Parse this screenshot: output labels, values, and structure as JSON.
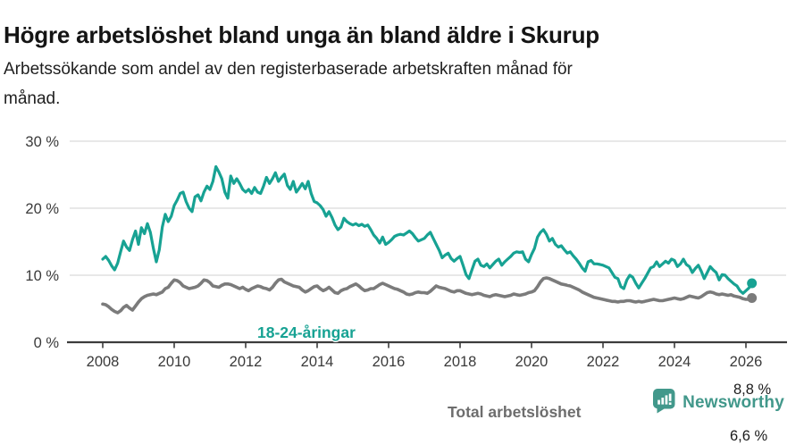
{
  "header": {
    "title": "Högre arbetslöshet bland unga än bland äldre i Skurup",
    "subtitle_line1": "Arbetssökande som andel av den registerbaserade arbetskraften månad för",
    "subtitle_line2": "månad."
  },
  "chart_data": {
    "type": "line",
    "unit": "percent",
    "frequency": "monthly",
    "x_start": "2008-01",
    "x_end": "2026-03",
    "x_tick_labels": [
      "2008",
      "2010",
      "2012",
      "2014",
      "2016",
      "2018",
      "2020",
      "2022",
      "2024",
      "2026"
    ],
    "y_ticks": [
      0,
      10,
      20,
      30
    ],
    "y_tick_labels": [
      "0 %",
      "10 %",
      "20 %",
      "30 %"
    ],
    "ylim": [
      0,
      32
    ],
    "grid": "horizontal",
    "legend_position": "inline-labels",
    "series": [
      {
        "name": "18-24-åringar",
        "color": "#17a293",
        "end_label": "8,8 %",
        "last_value": 8.8,
        "values": [
          12.4,
          12.8,
          12.2,
          11.4,
          10.8,
          11.8,
          13.5,
          15.1,
          14.2,
          13.7,
          15.3,
          16.6,
          14.6,
          17.1,
          16.2,
          17.7,
          16.4,
          14.0,
          12.0,
          13.8,
          17.2,
          19.1,
          18.0,
          18.8,
          20.4,
          21.2,
          22.2,
          22.4,
          21.0,
          20.0,
          19.5,
          21.7,
          22.0,
          21.1,
          22.4,
          23.3,
          22.8,
          24.0,
          26.2,
          25.4,
          24.4,
          22.4,
          21.5,
          24.8,
          23.7,
          24.4,
          23.7,
          22.8,
          22.4,
          22.8,
          22.2,
          23.1,
          22.4,
          22.2,
          23.3,
          24.6,
          23.7,
          24.4,
          25.3,
          24.0,
          24.6,
          25.1,
          23.4,
          22.8,
          24.0,
          22.4,
          23.0,
          23.7,
          22.9,
          24.0,
          22.2,
          21.0,
          20.8,
          20.4,
          19.8,
          18.8,
          19.5,
          18.6,
          17.5,
          16.8,
          17.2,
          18.5,
          18.0,
          17.7,
          17.5,
          17.7,
          17.4,
          17.6,
          17.3,
          17.5,
          16.8,
          16.0,
          15.5,
          14.8,
          15.7,
          14.6,
          14.9,
          15.3,
          15.8,
          16.0,
          16.1,
          16.0,
          16.3,
          16.6,
          16.2,
          15.6,
          15.1,
          15.3,
          15.5,
          16.0,
          16.4,
          15.5,
          14.6,
          13.7,
          12.6,
          13.0,
          13.3,
          12.5,
          12.1,
          12.5,
          12.8,
          11.5,
          10.1,
          9.5,
          10.8,
          12.1,
          12.4,
          11.5,
          11.3,
          11.7,
          11.1,
          11.6,
          12.1,
          12.4,
          11.5,
          12.0,
          12.4,
          12.8,
          13.3,
          13.5,
          13.4,
          13.5,
          12.4,
          12.0,
          13.1,
          14.0,
          15.7,
          16.4,
          16.8,
          16.1,
          15.1,
          15.5,
          14.6,
          14.2,
          14.4,
          13.8,
          13.3,
          13.5,
          12.9,
          12.4,
          11.8,
          11.1,
          10.6,
          12.0,
          12.2,
          11.7,
          11.7,
          11.6,
          11.5,
          11.3,
          11.1,
          10.4,
          9.7,
          9.5,
          8.3,
          8.0,
          9.3,
          10.0,
          9.7,
          8.8,
          8.1,
          8.8,
          9.5,
          10.3,
          11.1,
          11.3,
          12.0,
          11.3,
          11.7,
          12.1,
          11.8,
          12.4,
          12.2,
          11.3,
          11.7,
          12.4,
          11.6,
          11.3,
          10.4,
          11.0,
          11.5,
          10.6,
          9.5,
          10.4,
          11.3,
          10.8,
          10.4,
          9.3,
          10.1,
          10.0,
          9.5,
          9.1,
          8.7,
          8.4,
          7.7,
          7.3,
          7.7,
          8.1,
          8.8
        ]
      },
      {
        "name": "Total arbetslöshet",
        "color": "#7b7b7b",
        "label_color": "#6d6d6d",
        "end_label": "6,6 %",
        "last_value": 6.6,
        "values": [
          5.7,
          5.6,
          5.3,
          4.9,
          4.6,
          4.4,
          4.7,
          5.2,
          5.5,
          5.1,
          4.8,
          5.4,
          6.0,
          6.5,
          6.8,
          7.0,
          7.1,
          7.2,
          7.1,
          7.3,
          7.5,
          8.0,
          8.2,
          8.8,
          9.3,
          9.2,
          8.9,
          8.4,
          8.2,
          8.0,
          8.1,
          8.2,
          8.4,
          8.8,
          9.3,
          9.2,
          8.9,
          8.4,
          8.3,
          8.2,
          8.5,
          8.7,
          8.7,
          8.6,
          8.4,
          8.2,
          8.0,
          8.2,
          7.9,
          7.7,
          8.0,
          8.2,
          8.4,
          8.3,
          8.1,
          8.0,
          7.8,
          8.2,
          8.8,
          9.3,
          9.4,
          9.0,
          8.8,
          8.6,
          8.4,
          8.3,
          8.2,
          7.8,
          7.5,
          7.7,
          8.0,
          8.3,
          8.4,
          8.0,
          7.7,
          7.9,
          8.2,
          7.8,
          7.4,
          7.3,
          7.7,
          7.9,
          8.0,
          8.3,
          8.5,
          8.7,
          8.4,
          8.0,
          7.7,
          7.8,
          8.0,
          8.0,
          8.3,
          8.6,
          8.8,
          8.6,
          8.4,
          8.2,
          8.0,
          7.9,
          7.7,
          7.5,
          7.2,
          7.1,
          7.2,
          7.4,
          7.5,
          7.4,
          7.4,
          7.3,
          7.6,
          8.0,
          8.4,
          8.2,
          8.1,
          8.0,
          7.8,
          7.6,
          7.5,
          7.7,
          7.7,
          7.5,
          7.3,
          7.2,
          7.1,
          7.2,
          7.3,
          7.2,
          7.0,
          6.9,
          6.8,
          7.0,
          7.1,
          7.0,
          6.9,
          6.8,
          6.9,
          7.0,
          7.2,
          7.1,
          7.0,
          7.1,
          7.2,
          7.4,
          7.5,
          7.7,
          8.3,
          9.0,
          9.5,
          9.6,
          9.5,
          9.3,
          9.1,
          8.9,
          8.7,
          8.6,
          8.5,
          8.4,
          8.2,
          8.0,
          7.8,
          7.5,
          7.3,
          7.1,
          6.9,
          6.7,
          6.6,
          6.5,
          6.4,
          6.3,
          6.2,
          6.1,
          6.1,
          6.0,
          6.1,
          6.1,
          6.2,
          6.2,
          6.1,
          6.0,
          6.1,
          6.0,
          6.1,
          6.2,
          6.3,
          6.4,
          6.3,
          6.2,
          6.2,
          6.3,
          6.4,
          6.5,
          6.6,
          6.5,
          6.4,
          6.5,
          6.7,
          6.9,
          6.8,
          6.7,
          6.6,
          6.8,
          7.1,
          7.4,
          7.5,
          7.4,
          7.2,
          7.1,
          7.2,
          7.1,
          7.0,
          7.1,
          6.9,
          6.8,
          6.7,
          6.5,
          6.4,
          6.4,
          6.6
        ]
      }
    ],
    "style": {
      "grid_color": "#dadada",
      "axis_color": "#3c3c3c",
      "tick_text_color": "#3a3a3a"
    }
  },
  "footer": {
    "brand": "Newsworthy",
    "brand_color": "#42988b"
  }
}
